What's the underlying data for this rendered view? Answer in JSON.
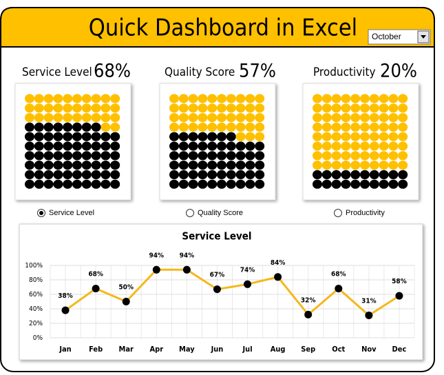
{
  "header": {
    "title": "Quick Dashboard in Excel",
    "dropdown": "October"
  },
  "controls": {
    "options": [
      "Service Level",
      "Quality Score",
      "Productivity"
    ],
    "selected": 0
  },
  "chart_data": [
    {
      "type": "waffle",
      "title": "Service Level",
      "values": [
        68
      ],
      "value_labels": [
        "68%"
      ],
      "color": "#000000",
      "empty_color": "#FFC000"
    },
    {
      "type": "waffle",
      "title": "Quality  Score",
      "values": [
        57
      ],
      "value_labels": [
        "57%"
      ],
      "color": "#000000",
      "empty_color": "#FFC000"
    },
    {
      "type": "waffle",
      "title": "Productivity",
      "values": [
        20
      ],
      "value_labels": [
        "20%"
      ],
      "color": "#000000",
      "empty_color": "#FFC000"
    },
    {
      "type": "line",
      "title": "Service Level",
      "categories": [
        "Jan",
        "Feb",
        "Mar",
        "Apr",
        "May",
        "Jun",
        "Jul",
        "Aug",
        "Sep",
        "Oct",
        "Nov",
        "Dec"
      ],
      "values": [
        38,
        68,
        50,
        94,
        94,
        67,
        74,
        84,
        32,
        68,
        31,
        58
      ],
      "value_labels": [
        "38%",
        "68%",
        "50%",
        "94%",
        "94%",
        "67%",
        "74%",
        "84%",
        "32%",
        "68%",
        "31%",
        "58%"
      ],
      "color": "#F4B81C",
      "marker_color": "#000000",
      "ylim": [
        0,
        100
      ],
      "yticks": [
        {
          "value": 0,
          "label": "0%"
        },
        {
          "value": 20,
          "label": "20%"
        },
        {
          "value": 40,
          "label": "40%"
        },
        {
          "value": 60,
          "label": "60%"
        },
        {
          "value": 80,
          "label": "80%"
        },
        {
          "value": 100,
          "label": "100%"
        }
      ],
      "grid": true
    }
  ]
}
